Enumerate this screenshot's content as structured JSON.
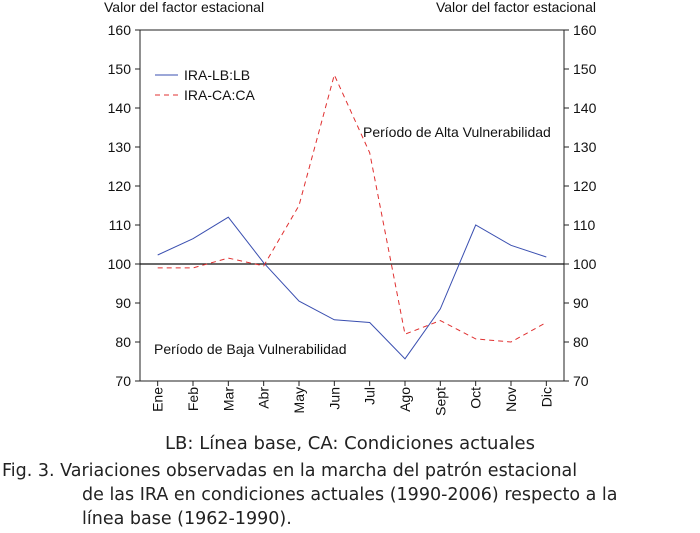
{
  "chart_data": {
    "type": "line",
    "y_axis_left_title": "Valor del factor estacional",
    "y_axis_right_title": "Valor del factor estacional",
    "ylim": [
      70,
      160
    ],
    "yticks": [
      70,
      80,
      90,
      100,
      110,
      120,
      130,
      140,
      150,
      160
    ],
    "categories": [
      "Ene",
      "Feb",
      "Mar",
      "Abr",
      "May",
      "Jun",
      "Jul",
      "Ago",
      "Sept",
      "Oct",
      "Nov",
      "Dic"
    ],
    "series": [
      {
        "name": "IRA-LB:LB",
        "style": "solid",
        "color": "#3a4fb0",
        "values": [
          102.3,
          106.5,
          112,
          100.3,
          90.5,
          85.7,
          85,
          75.7,
          88.5,
          110,
          104.8,
          101.8
        ]
      },
      {
        "name": "IRA-CA:CA",
        "style": "dashed",
        "color": "#e03030",
        "values": [
          99,
          99,
          101.5,
          99.5,
          115,
          148.5,
          128.5,
          82,
          85.5,
          80.8,
          80,
          85
        ]
      }
    ],
    "reference_line": {
      "y": 100
    },
    "annotations": [
      "Período de Alta Vulnerabilidad",
      "Período de Baja Vulnerabilidad"
    ],
    "legend_position": "top-left",
    "grid": false
  },
  "captions": {
    "legend_note": "LB: Línea base, CA: Condiciones actuales",
    "figure_lines": [
      "Fig. 3. Variaciones observadas en la  marcha del patrón estacional",
      "de las IRA en condiciones actuales (1990-2006)  respecto a la",
      "línea base (1962-1990)."
    ]
  }
}
